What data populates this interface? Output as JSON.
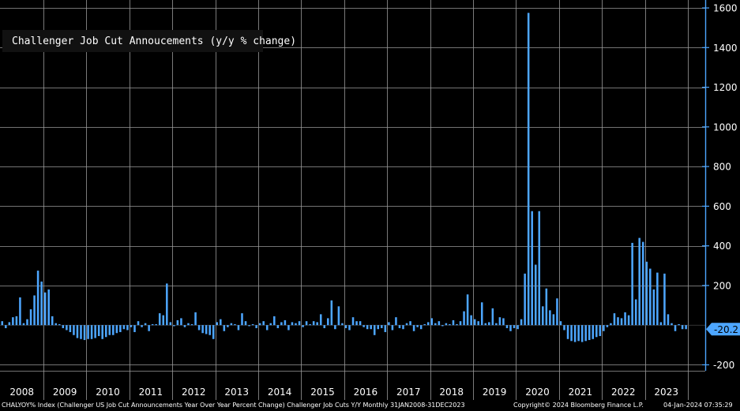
{
  "legend": {
    "label": "Challenger Job Cut Annoucements (y/y % change)",
    "color": "#4da6ff"
  },
  "footer": {
    "left": "CHALYOY% Index (Challenger US Job Cut Announcements Year Over Year Percent Change) Challenger Job Cuts Y/Y  Monthly 31JAN2008-31DEC2023",
    "copyright": "Copyright© 2024 Bloomberg Finance L.P.",
    "timestamp": "04-Jan-2024 07:35:29"
  },
  "last_value_label": "-20.2",
  "colors": {
    "background": "#000000",
    "bar": "#4da6ff",
    "grid": "#9a9a9a",
    "axis": "#4da6ff",
    "tag": "#4da6ff",
    "text": "#ffffff"
  },
  "chart_data": {
    "type": "bar",
    "title": "",
    "xlabel": "",
    "ylabel": "",
    "ylim": [
      -230,
      1640
    ],
    "yticks": [
      -200,
      200,
      400,
      600,
      800,
      1000,
      1200,
      1400,
      1600
    ],
    "grid": true,
    "legend_position": "top-left",
    "last_value": -20.2,
    "x_tick_labels": [
      "2008",
      "2009",
      "2010",
      "2011",
      "2012",
      "2013",
      "2014",
      "2015",
      "2016",
      "2017",
      "2018",
      "2019",
      "2020",
      "2021",
      "2022",
      "2023"
    ],
    "series": [
      {
        "name": "Challenger Job Cut Annoucements (y/y % change)",
        "frequency": "monthly",
        "start": "2008-01",
        "end": "2023-12",
        "values": [
          20,
          -15,
          15,
          40,
          45,
          140,
          10,
          30,
          80,
          150,
          275,
          220,
          165,
          180,
          45,
          10,
          5,
          -15,
          -25,
          -35,
          -50,
          -65,
          -70,
          -75,
          -70,
          -70,
          -65,
          -55,
          -70,
          -60,
          -50,
          -50,
          -40,
          -35,
          -20,
          -25,
          -10,
          -35,
          20,
          -10,
          10,
          -30,
          5,
          5,
          60,
          50,
          210,
          15,
          -5,
          25,
          35,
          -10,
          10,
          5,
          65,
          -25,
          -40,
          -45,
          -50,
          -70,
          15,
          30,
          -30,
          -10,
          10,
          5,
          -25,
          60,
          20,
          -5,
          5,
          -15,
          10,
          20,
          -25,
          10,
          45,
          -15,
          15,
          25,
          -25,
          15,
          10,
          20,
          -10,
          20,
          5,
          20,
          15,
          55,
          -15,
          35,
          125,
          -20,
          95,
          10,
          -15,
          -25,
          40,
          20,
          20,
          -10,
          -20,
          -20,
          -50,
          -20,
          -15,
          -35,
          15,
          -25,
          40,
          -15,
          -20,
          10,
          20,
          -30,
          -10,
          -20,
          5,
          15,
          35,
          10,
          20,
          -5,
          10,
          5,
          25,
          5,
          20,
          70,
          155,
          50,
          30,
          20,
          115,
          10,
          15,
          85,
          10,
          40,
          35,
          -15,
          -30,
          -15,
          -20,
          30,
          260,
          1575,
          575,
          305,
          575,
          95,
          185,
          75,
          55,
          135,
          20,
          -25,
          -70,
          -80,
          -85,
          -80,
          -85,
          -80,
          -75,
          -70,
          -60,
          -55,
          -30,
          -10,
          10,
          60,
          40,
          35,
          65,
          50,
          415,
          130,
          440,
          420,
          320,
          285,
          180,
          265,
          15,
          260,
          55,
          10,
          -30,
          5,
          -20,
          -20
        ]
      }
    ]
  }
}
